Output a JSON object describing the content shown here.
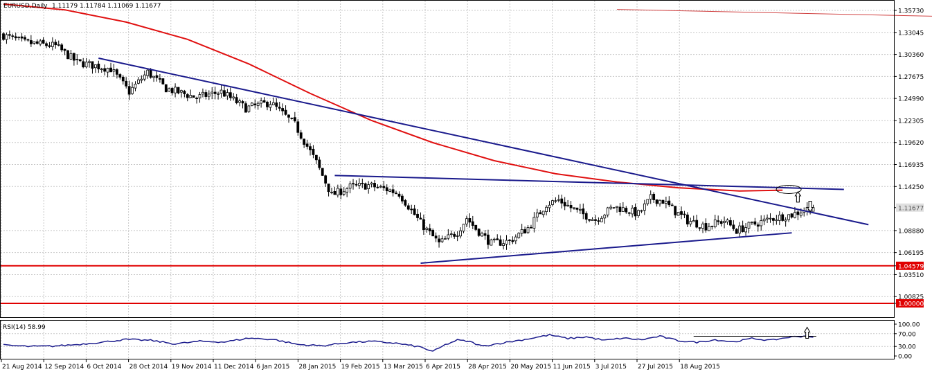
{
  "header": {
    "symbol": "EURUSD,Daily",
    "ohlc": "1.11179 1.11784 1.11069 1.11677"
  },
  "rsi_header": "RSI(14) 58.99",
  "chart_data": [
    {
      "type": "candlestick",
      "title": "EURUSD,Daily  1.11179 1.11784 1.11069 1.11677",
      "ylim": [
        1.0,
        1.3573
      ],
      "y_ticks": [
        "1.35730",
        "1.33045",
        "1.30360",
        "1.27675",
        "1.24990",
        "1.22305",
        "1.19620",
        "1.16935",
        "1.14250",
        "1.11677",
        "1.08880",
        "1.06195",
        "1.04579",
        "1.03510",
        "1.00825",
        "1.00000"
      ],
      "x_ticks": [
        "21 Aug 2014",
        "12 Sep 2014",
        "6 Oct 2014",
        "28 Oct 2014",
        "19 Nov 2014",
        "11 Dec 2014",
        "6 Jan 2015",
        "28 Jan 2015",
        "19 Feb 2015",
        "13 Mar 2015",
        "6 Apr 2015",
        "28 Apr 2015",
        "20 May 2015",
        "11 Jun 2015",
        "3 Jul 2015",
        "27 Jul 2015",
        "18 Aug 2015"
      ],
      "last_price": 1.11677,
      "price_path": [
        [
          0,
          1.328
        ],
        [
          8,
          1.318
        ],
        [
          18,
          1.314
        ],
        [
          25,
          1.294
        ],
        [
          36,
          1.286
        ],
        [
          42,
          1.258
        ],
        [
          48,
          1.282
        ],
        [
          54,
          1.262
        ],
        [
          64,
          1.251
        ],
        [
          72,
          1.258
        ],
        [
          80,
          1.238
        ],
        [
          88,
          1.245
        ],
        [
          96,
          1.218
        ],
        [
          103,
          1.172
        ],
        [
          108,
          1.132
        ],
        [
          114,
          1.142
        ],
        [
          120,
          1.144
        ],
        [
          126,
          1.139
        ],
        [
          130,
          1.134
        ],
        [
          137,
          1.098
        ],
        [
          143,
          1.073
        ],
        [
          149,
          1.087
        ],
        [
          152,
          1.104
        ],
        [
          155,
          1.091
        ],
        [
          160,
          1.073
        ],
        [
          166,
          1.076
        ],
        [
          172,
          1.092
        ],
        [
          178,
          1.121
        ],
        [
          182,
          1.126
        ],
        [
          188,
          1.112
        ],
        [
          194,
          1.102
        ],
        [
          200,
          1.118
        ],
        [
          204,
          1.114
        ],
        [
          208,
          1.109
        ],
        [
          212,
          1.128
        ],
        [
          216,
          1.125
        ],
        [
          220,
          1.112
        ],
        [
          224,
          1.101
        ],
        [
          230,
          1.094
        ],
        [
          236,
          1.101
        ],
        [
          240,
          1.089
        ],
        [
          246,
          1.097
        ],
        [
          252,
          1.104
        ],
        [
          258,
          1.108
        ],
        [
          264,
          1.1168
        ]
      ],
      "ma_path": [
        [
          0,
          1.365
        ],
        [
          20,
          1.358
        ],
        [
          40,
          1.343
        ],
        [
          60,
          1.322
        ],
        [
          80,
          1.292
        ],
        [
          100,
          1.256
        ],
        [
          120,
          1.223
        ],
        [
          140,
          1.196
        ],
        [
          160,
          1.174
        ],
        [
          180,
          1.158
        ],
        [
          200,
          1.148
        ],
        [
          220,
          1.141
        ],
        [
          240,
          1.137
        ],
        [
          254,
          1.138
        ]
      ],
      "ma_upper_path": [
        [
          200,
          1.3585
        ],
        [
          318,
          1.349
        ]
      ],
      "trendlines": [
        {
          "from": [
            31,
            1.299
          ],
          "to": [
            282,
            1.096
          ]
        },
        {
          "from": [
            108,
            1.156
          ],
          "to": [
            274,
            1.139
          ]
        },
        {
          "from": [
            136,
            1.049
          ],
          "to": [
            257,
            1.086
          ]
        }
      ],
      "horizontal_levels": [
        1.04579,
        1.0
      ],
      "annotation_arrows": [
        {
          "index": 259,
          "price": 1.131,
          "direction": "up"
        },
        {
          "index": 263,
          "price": 1.117,
          "direction": "down"
        }
      ],
      "ellipse_annotation": {
        "index": 256,
        "price": 1.139
      }
    },
    {
      "type": "line",
      "title": "RSI(14) 58.99",
      "ylim": [
        0,
        100
      ],
      "y_ticks": [
        "100.00",
        "70.00",
        "30.00",
        "0.00"
      ],
      "guide_levels": [
        70,
        30
      ],
      "rsi_path": [
        [
          0,
          34
        ],
        [
          8,
          30
        ],
        [
          16,
          31
        ],
        [
          24,
          36
        ],
        [
          32,
          43
        ],
        [
          40,
          52
        ],
        [
          48,
          49
        ],
        [
          56,
          38
        ],
        [
          64,
          46
        ],
        [
          72,
          44
        ],
        [
          80,
          56
        ],
        [
          88,
          52
        ],
        [
          96,
          36
        ],
        [
          104,
          32
        ],
        [
          112,
          42
        ],
        [
          120,
          46
        ],
        [
          128,
          40
        ],
        [
          136,
          28
        ],
        [
          140,
          14
        ],
        [
          144,
          35
        ],
        [
          148,
          50
        ],
        [
          152,
          45
        ],
        [
          156,
          31
        ],
        [
          162,
          40
        ],
        [
          170,
          52
        ],
        [
          178,
          66
        ],
        [
          184,
          55
        ],
        [
          190,
          60
        ],
        [
          196,
          49
        ],
        [
          202,
          56
        ],
        [
          208,
          51
        ],
        [
          214,
          62
        ],
        [
          220,
          48
        ],
        [
          226,
          43
        ],
        [
          232,
          51
        ],
        [
          238,
          44
        ],
        [
          244,
          55
        ],
        [
          250,
          49
        ],
        [
          256,
          59
        ],
        [
          262,
          63
        ],
        [
          264,
          58.99
        ]
      ]
    }
  ]
}
